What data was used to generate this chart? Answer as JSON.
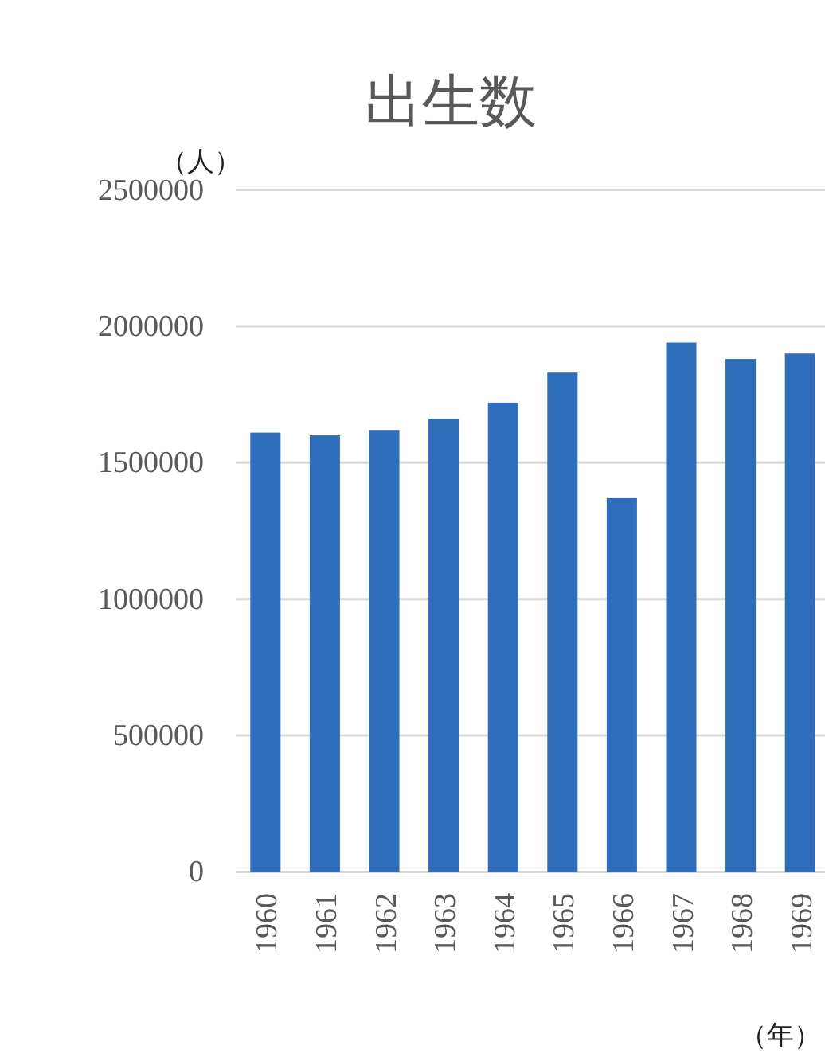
{
  "chart_data": {
    "type": "bar",
    "title": "出生数",
    "ylabel": "（人）",
    "xlabel": "（年）",
    "categories": [
      "1960",
      "1961",
      "1962",
      "1963",
      "1964",
      "1965",
      "1966",
      "1967",
      "1968",
      "1969"
    ],
    "values": [
      1610000,
      1600000,
      1620000,
      1660000,
      1720000,
      1830000,
      1370000,
      1940000,
      1880000,
      1900000
    ],
    "color": "#2f6eba",
    "ylim": [
      0,
      2500000
    ],
    "yticks": [
      0,
      500000,
      1000000,
      1500000,
      2000000,
      2500000
    ],
    "grid": "y"
  }
}
